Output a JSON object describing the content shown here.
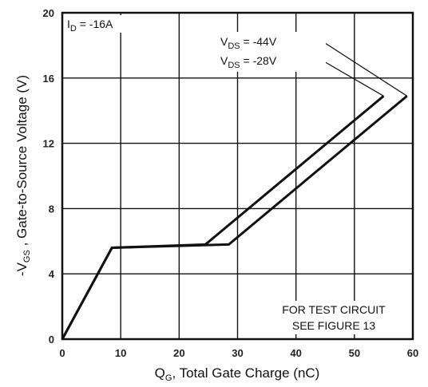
{
  "chart_data": {
    "type": "line",
    "xlabel_main": "Q",
    "xlabel_sub": "G",
    "xlabel_rest": ", Total Gate Charge (nC)",
    "ylabel_pre": "-V",
    "ylabel_sub": "GS",
    "ylabel_rest": " , Gate-to-Source Voltage (V)",
    "xlim": [
      0,
      60
    ],
    "ylim": [
      0,
      20
    ],
    "xticks": [
      "0",
      "10",
      "20",
      "30",
      "40",
      "50",
      "60"
    ],
    "yticks": [
      "0",
      "4",
      "8",
      "12",
      "16",
      "20"
    ],
    "grid": true,
    "condition_main": "I",
    "condition_sub": "D",
    "condition_rest": " = -16A",
    "note_line1": "FOR TEST CIRCUIT",
    "note_line2": "SEE FIGURE 13",
    "series": [
      {
        "name_main": "V",
        "name_sub": "DS",
        "name_rest": " = -44V",
        "x": [
          0,
          8.5,
          28.5,
          59.0
        ],
        "y": [
          0,
          5.6,
          5.8,
          14.9
        ]
      },
      {
        "name_main": "V",
        "name_sub": "DS",
        "name_rest": " = -28V",
        "x": [
          0,
          8.5,
          24.5,
          55.0
        ],
        "y": [
          0,
          5.6,
          5.8,
          14.9
        ]
      }
    ],
    "line_color": "#111111"
  }
}
